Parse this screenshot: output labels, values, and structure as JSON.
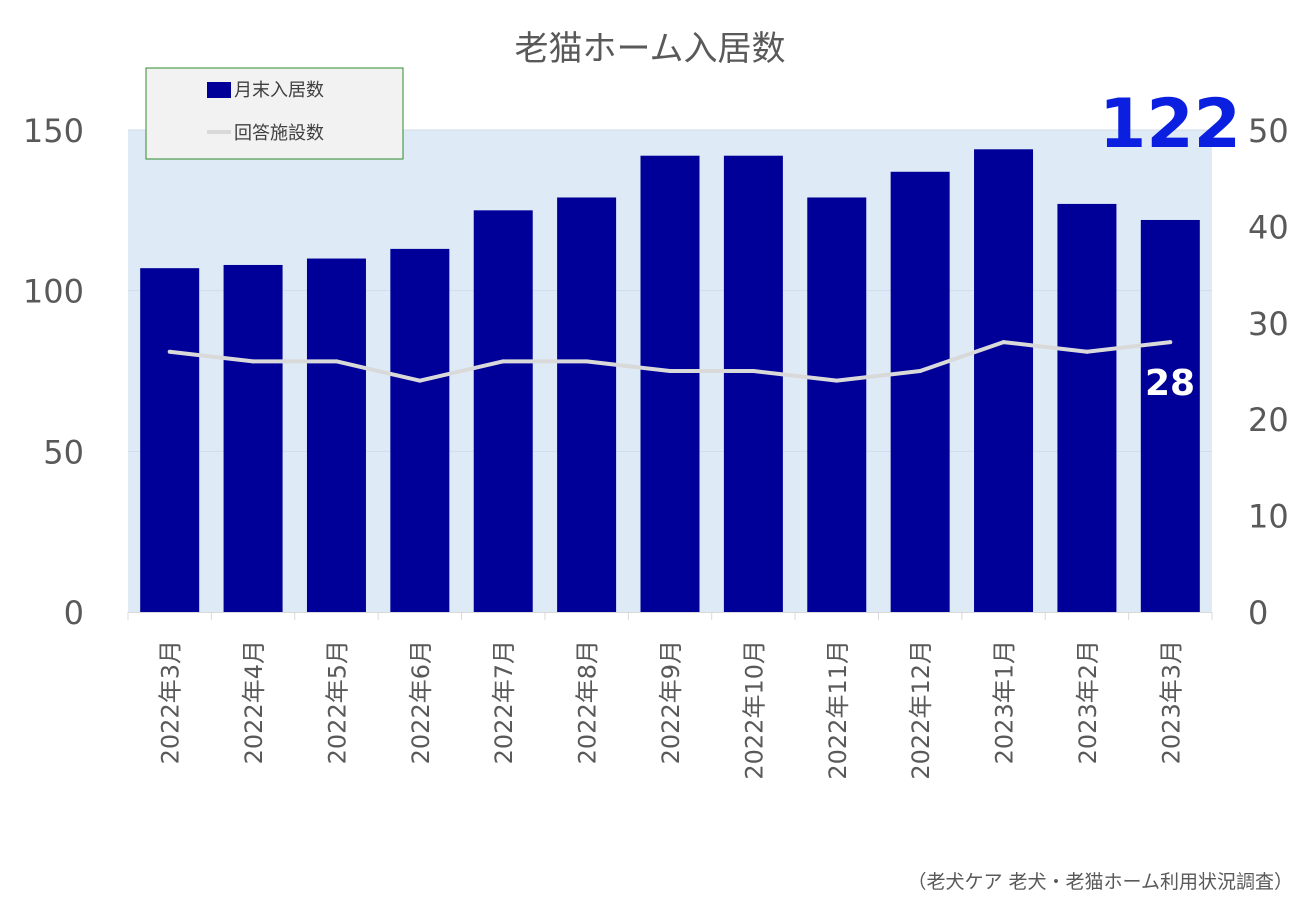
{
  "chart_data": {
    "type": "bar",
    "title": "老猫ホーム入居数",
    "categories": [
      "2022年3月",
      "2022年4月",
      "2022年5月",
      "2022年6月",
      "2022年7月",
      "2022年8月",
      "2022年9月",
      "2022年10月",
      "2022年11月",
      "2022年12月",
      "2023年1月",
      "2023年2月",
      "2023年3月"
    ],
    "series": [
      {
        "name": "月末入居数",
        "type": "bar",
        "axis": "left",
        "color": "#000099",
        "values": [
          107,
          108,
          110,
          113,
          125,
          129,
          142,
          142,
          129,
          137,
          144,
          127,
          122
        ]
      },
      {
        "name": "回答施設数",
        "type": "line",
        "axis": "right",
        "color": "#d9d9d9",
        "values": [
          27,
          26,
          26,
          24,
          26,
          26,
          25,
          25,
          24,
          25,
          28,
          27,
          28
        ]
      }
    ],
    "y_left": {
      "range": [
        0,
        150
      ],
      "ticks": [
        "0",
        "50",
        "100",
        "150"
      ]
    },
    "y_right": {
      "range": [
        0,
        50
      ],
      "ticks": [
        "0",
        "10",
        "20",
        "30",
        "40",
        "50"
      ]
    },
    "highlight_bar_label": "122",
    "highlight_line_label": "28",
    "legend_position": "top-left",
    "plot_background": "#deebf7",
    "source": "（老犬ケア 老犬・老猫ホーム利用状況調査）"
  }
}
